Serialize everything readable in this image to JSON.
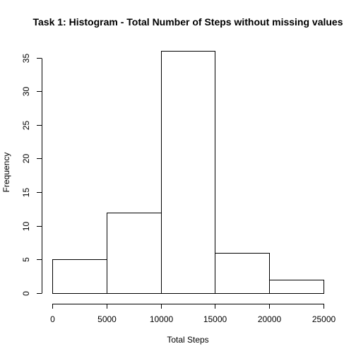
{
  "chart_data": {
    "type": "bar",
    "subtype": "histogram",
    "title": "Task 1: Histogram - Total Number of Steps without missing values",
    "xlabel": "Total Steps",
    "ylabel": "Frequency",
    "bins": [
      {
        "start": 0,
        "end": 5000,
        "count": 5
      },
      {
        "start": 5000,
        "end": 10000,
        "count": 12
      },
      {
        "start": 10000,
        "end": 15000,
        "count": 36
      },
      {
        "start": 15000,
        "end": 20000,
        "count": 6
      },
      {
        "start": 20000,
        "end": 25000,
        "count": 2
      }
    ],
    "xlim": [
      0,
      25000
    ],
    "ylim": [
      0,
      36
    ],
    "xticks": [
      0,
      5000,
      10000,
      15000,
      20000,
      25000
    ],
    "yticks": [
      0,
      5,
      10,
      15,
      20,
      25,
      30,
      35
    ],
    "grid": false,
    "bar_fill": "#ffffff",
    "bar_stroke": "#000000"
  }
}
